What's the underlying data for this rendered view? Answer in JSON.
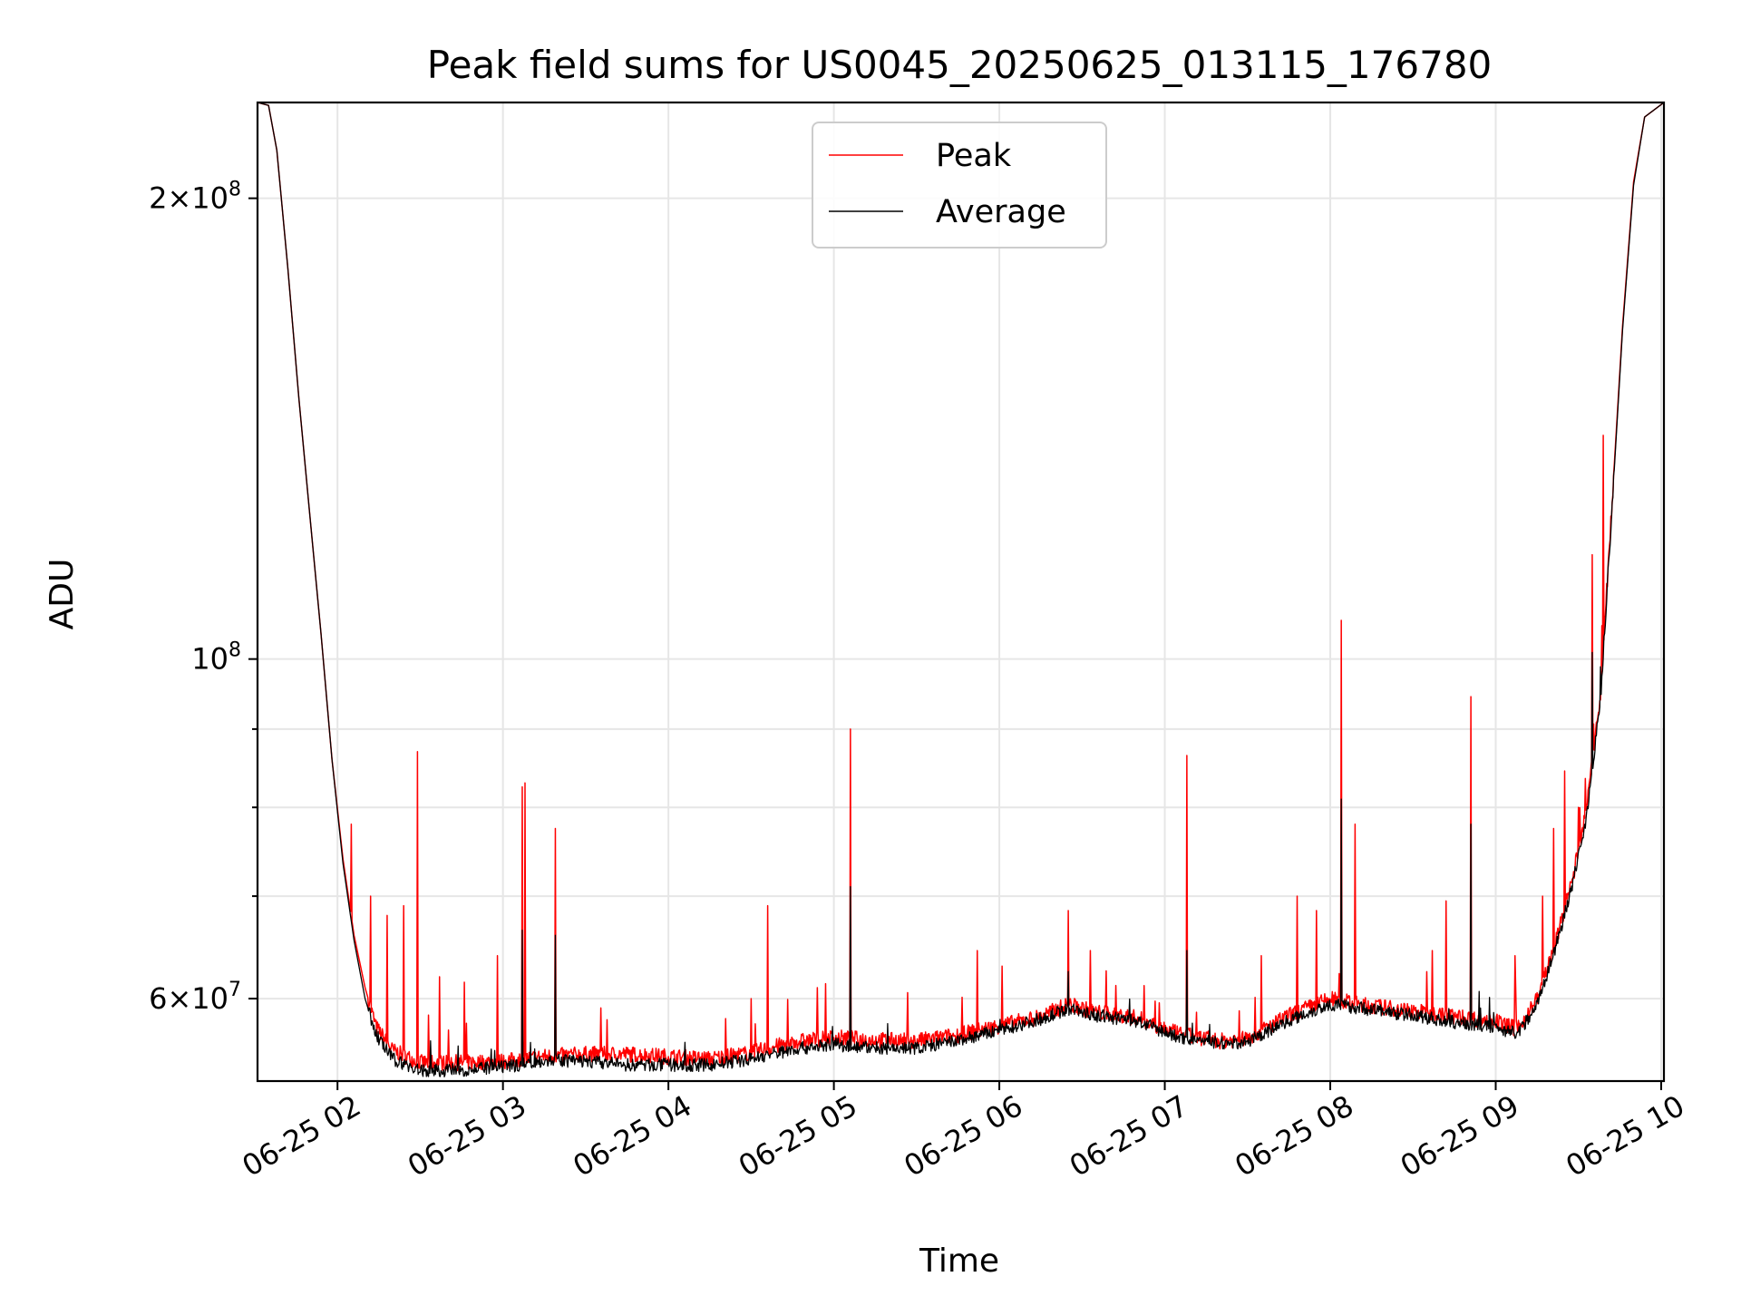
{
  "chart_data": {
    "type": "line",
    "title": "Peak field sums for US0045_20250625_013115_176780",
    "xlabel": "Time",
    "ylabel": "ADU",
    "y_scale": "log",
    "grid": true,
    "legend_position": "upper-center",
    "x_range": [
      "06-25 01:31",
      "06-25 10:01"
    ],
    "ylim": [
      53000000,
      231000000
    ],
    "x_ticks": [
      "06-25 02",
      "06-25 03",
      "06-25 04",
      "06-25 05",
      "06-25 06",
      "06-25 07",
      "06-25 08",
      "06-25 09",
      "06-25 10"
    ],
    "y_tick_labels": [
      {
        "value": 60000000,
        "mantissa": "6",
        "exponent": "7"
      },
      {
        "value": 100000000,
        "mantissa": "",
        "exponent": "8"
      },
      {
        "value": 200000000,
        "mantissa": "2",
        "exponent": "8"
      }
    ],
    "y_minor_ticks": [
      70000000,
      80000000,
      90000000
    ],
    "series": [
      {
        "name": "Peak",
        "color": "#ff0000",
        "points": [
          [
            "06-25 01:31",
            231000000
          ],
          [
            "06-25 01:35",
            230000000
          ],
          [
            "06-25 01:38",
            215000000
          ],
          [
            "06-25 01:42",
            180000000
          ],
          [
            "06-25 01:46",
            148000000
          ],
          [
            "06-25 01:50",
            124000000
          ],
          [
            "06-25 01:54",
            104000000
          ],
          [
            "06-25 01:58",
            86000000
          ],
          [
            "06-25 02:02",
            74000000
          ],
          [
            "06-25 02:06",
            66000000
          ],
          [
            "06-25 02:10",
            61000000
          ],
          [
            "06-25 02:14",
            57500000
          ],
          [
            "06-25 02:20",
            55500000
          ],
          [
            "06-25 02:30",
            54500000
          ],
          [
            "06-25 02:45",
            54500000
          ],
          [
            "06-25 03:00",
            54600000
          ],
          [
            "06-25 03:15",
            55000000
          ],
          [
            "06-25 03:30",
            55200000
          ],
          [
            "06-25 03:45",
            55200000
          ],
          [
            "06-25 04:00",
            55000000
          ],
          [
            "06-25 04:15",
            54800000
          ],
          [
            "06-25 04:30",
            55300000
          ],
          [
            "06-25 04:45",
            56200000
          ],
          [
            "06-25 05:00",
            56600000
          ],
          [
            "06-25 05:15",
            56400000
          ],
          [
            "06-25 05:30",
            56300000
          ],
          [
            "06-25 05:45",
            56800000
          ],
          [
            "06-25 06:00",
            57600000
          ],
          [
            "06-25 06:15",
            58400000
          ],
          [
            "06-25 06:25",
            59500000
          ],
          [
            "06-25 06:35",
            58800000
          ],
          [
            "06-25 06:50",
            58300000
          ],
          [
            "06-25 07:05",
            56900000
          ],
          [
            "06-25 07:20",
            56300000
          ],
          [
            "06-25 07:30",
            56500000
          ],
          [
            "06-25 07:45",
            58500000
          ],
          [
            "06-25 08:00",
            60000000
          ],
          [
            "06-25 08:10",
            59500000
          ],
          [
            "06-25 08:30",
            58900000
          ],
          [
            "06-25 08:45",
            58400000
          ],
          [
            "06-25 09:00",
            58000000
          ],
          [
            "06-25 09:08",
            57300000
          ],
          [
            "06-25 09:15",
            60000000
          ],
          [
            "06-25 09:22",
            65500000
          ],
          [
            "06-25 09:28",
            72000000
          ],
          [
            "06-25 09:33",
            80000000
          ],
          [
            "06-25 09:38",
            95000000
          ],
          [
            "06-25 09:42",
            125000000
          ],
          [
            "06-25 09:46",
            165000000
          ],
          [
            "06-25 09:50",
            205000000
          ],
          [
            "06-25 09:54",
            226000000
          ],
          [
            "06-25 10:01",
            231000000
          ]
        ],
        "spikes": [
          [
            "06-25 02:05",
            78000000
          ],
          [
            "06-25 02:12",
            70000000
          ],
          [
            "06-25 02:18",
            68000000
          ],
          [
            "06-25 02:24",
            69000000
          ],
          [
            "06-25 02:29",
            87000000
          ],
          [
            "06-25 02:37",
            62000000
          ],
          [
            "06-25 02:46",
            61500000
          ],
          [
            "06-25 02:58",
            64000000
          ],
          [
            "06-25 03:07",
            82500000
          ],
          [
            "06-25 03:08",
            83000000
          ],
          [
            "06-25 03:19",
            77500000
          ],
          [
            "06-25 04:30",
            60000000
          ],
          [
            "06-25 04:36",
            69000000
          ],
          [
            "06-25 04:54",
            61000000
          ],
          [
            "06-25 05:06",
            90000000
          ],
          [
            "06-25 05:52",
            64500000
          ],
          [
            "06-25 06:01",
            63000000
          ],
          [
            "06-25 06:25",
            68500000
          ],
          [
            "06-25 06:33",
            64500000
          ],
          [
            "06-25 07:08",
            86500000
          ],
          [
            "06-25 07:35",
            64000000
          ],
          [
            "06-25 07:48",
            70000000
          ],
          [
            "06-25 07:55",
            68500000
          ],
          [
            "06-25 08:04",
            106000000
          ],
          [
            "06-25 08:09",
            78000000
          ],
          [
            "06-25 08:37",
            64500000
          ],
          [
            "06-25 08:42",
            69500000
          ],
          [
            "06-25 08:51",
            94500000
          ],
          [
            "06-25 09:07",
            64000000
          ],
          [
            "06-25 09:17",
            70000000
          ],
          [
            "06-25 09:21",
            77500000
          ],
          [
            "06-25 09:25",
            84500000
          ],
          [
            "06-25 09:30",
            80000000
          ],
          [
            "06-25 09:35",
            117000000
          ],
          [
            "06-25 09:39",
            140000000
          ]
        ]
      },
      {
        "name": "Average",
        "color": "#000000",
        "points": [
          [
            "06-25 01:31",
            231000000
          ],
          [
            "06-25 01:35",
            230000000
          ],
          [
            "06-25 01:38",
            215000000
          ],
          [
            "06-25 01:42",
            180000000
          ],
          [
            "06-25 01:46",
            148000000
          ],
          [
            "06-25 01:50",
            124000000
          ],
          [
            "06-25 01:54",
            104000000
          ],
          [
            "06-25 01:58",
            86000000
          ],
          [
            "06-25 02:02",
            73500000
          ],
          [
            "06-25 02:06",
            65500000
          ],
          [
            "06-25 02:10",
            60000000
          ],
          [
            "06-25 02:14",
            56800000
          ],
          [
            "06-25 02:20",
            54800000
          ],
          [
            "06-25 02:30",
            53800000
          ],
          [
            "06-25 02:45",
            53900000
          ],
          [
            "06-25 03:00",
            54100000
          ],
          [
            "06-25 03:15",
            54700000
          ],
          [
            "06-25 03:30",
            54600000
          ],
          [
            "06-25 03:45",
            54300000
          ],
          [
            "06-25 04:00",
            54300000
          ],
          [
            "06-25 04:15",
            54300000
          ],
          [
            "06-25 04:30",
            54800000
          ],
          [
            "06-25 04:45",
            55600000
          ],
          [
            "06-25 05:00",
            56000000
          ],
          [
            "06-25 05:15",
            55700000
          ],
          [
            "06-25 05:30",
            55700000
          ],
          [
            "06-25 05:45",
            56300000
          ],
          [
            "06-25 06:00",
            57200000
          ],
          [
            "06-25 06:15",
            58200000
          ],
          [
            "06-25 06:25",
            59100000
          ],
          [
            "06-25 06:35",
            58500000
          ],
          [
            "06-25 06:50",
            58000000
          ],
          [
            "06-25 07:05",
            56600000
          ],
          [
            "06-25 07:20",
            56100000
          ],
          [
            "06-25 07:30",
            56200000
          ],
          [
            "06-25 07:45",
            58100000
          ],
          [
            "06-25 08:00",
            59500000
          ],
          [
            "06-25 08:10",
            59200000
          ],
          [
            "06-25 08:30",
            58500000
          ],
          [
            "06-25 08:45",
            57900000
          ],
          [
            "06-25 09:00",
            57500000
          ],
          [
            "06-25 09:08",
            56900000
          ],
          [
            "06-25 09:15",
            59500000
          ],
          [
            "06-25 09:22",
            65000000
          ],
          [
            "06-25 09:28",
            71500000
          ],
          [
            "06-25 09:33",
            79000000
          ],
          [
            "06-25 09:38",
            94000000
          ],
          [
            "06-25 09:42",
            124000000
          ],
          [
            "06-25 09:46",
            164000000
          ],
          [
            "06-25 09:50",
            204000000
          ],
          [
            "06-25 09:54",
            226000000
          ],
          [
            "06-25 10:01",
            231000000
          ]
        ],
        "spikes": [
          [
            "06-25 03:07",
            66500000
          ],
          [
            "06-25 03:19",
            66000000
          ],
          [
            "06-25 05:06",
            71000000
          ],
          [
            "06-25 07:08",
            64500000
          ],
          [
            "06-25 08:04",
            81000000
          ],
          [
            "06-25 08:51",
            78000000
          ],
          [
            "06-25 09:35",
            101000000
          ],
          [
            "06-25 06:25",
            62500000
          ]
        ]
      }
    ]
  }
}
